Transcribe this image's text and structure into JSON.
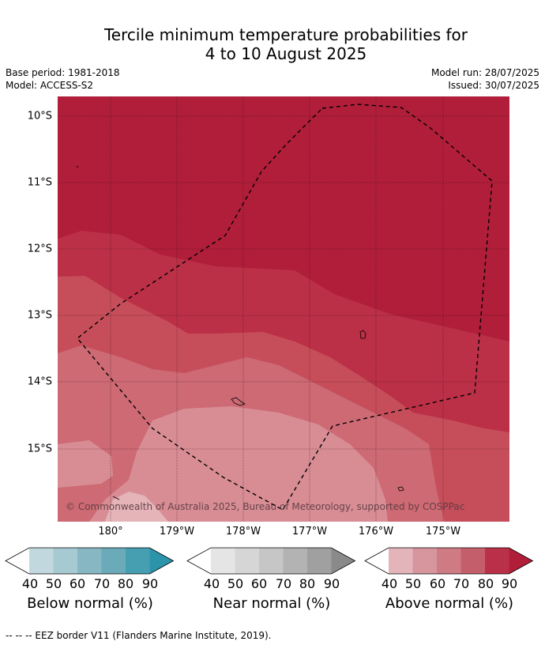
{
  "title": {
    "line1": "Tercile minimum temperature probabilities for",
    "line2": "4 to 10 August 2025"
  },
  "meta": {
    "base_period": "Base period: 1981-2018",
    "model": "Model: ACCESS-S2",
    "model_run": "Model run: 28/07/2025",
    "issued": "Issued: 30/07/2025"
  },
  "map": {
    "lat_labels": [
      "10°S",
      "11°S",
      "12°S",
      "13°S",
      "14°S",
      "15°S"
    ],
    "lon_labels": [
      "180°",
      "179°W",
      "178°W",
      "177°W",
      "176°W",
      "175°W"
    ],
    "copyright": "© Commonwealth of Australia 2025, Bureau of Meteorology, supported by COSPPac",
    "colors": {
      "above_90": "#b01e3a",
      "above_80": "#bb3047",
      "above_70": "#c64e5a",
      "above_60": "#cd6a74",
      "above_50": "#d88d95",
      "above_40": "#e4b4b9"
    }
  },
  "colorbars": [
    {
      "title": "Below normal (%)",
      "ticks": [
        "40",
        "50",
        "60",
        "70",
        "80",
        "90"
      ],
      "colors": [
        "#c2d8df",
        "#a7c9d1",
        "#88b7c4",
        "#6baab8",
        "#459fb1",
        "#2b93aa"
      ]
    },
    {
      "title": "Near normal (%)",
      "ticks": [
        "40",
        "50",
        "60",
        "70",
        "80",
        "90"
      ],
      "colors": [
        "#e5e5e5",
        "#d6d6d6",
        "#c6c6c6",
        "#b3b3b3",
        "#a0a0a0",
        "#8a8a8a"
      ]
    },
    {
      "title": "Above normal (%)",
      "ticks": [
        "40",
        "50",
        "60",
        "70",
        "80",
        "90"
      ],
      "colors": [
        "#e3b5ba",
        "#d7959d",
        "#ce7b83",
        "#c55e6b",
        "#bb3049",
        "#b01e3a"
      ]
    }
  ],
  "footnote": "--  --  -- EEZ border V11 (Flanders Marine Institute, 2019)."
}
